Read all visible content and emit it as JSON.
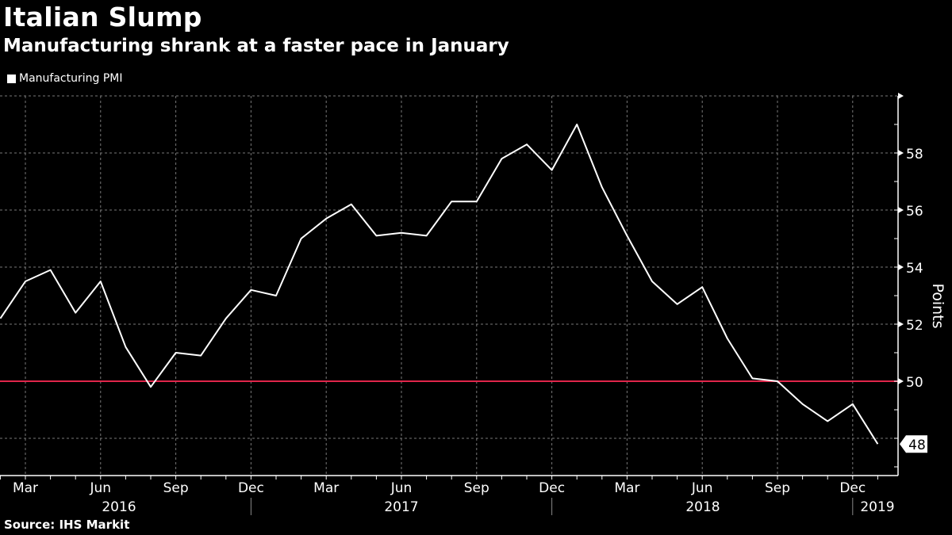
{
  "header": {
    "title": "Italian Slump",
    "subtitle": "Manufacturing shrank at a faster pace in January"
  },
  "legend": {
    "items": [
      {
        "label": "Manufacturing PMI",
        "color": "#ffffff"
      }
    ]
  },
  "footer": {
    "source": "Source: IHS Markit"
  },
  "colors": {
    "background": "#000000",
    "line": "#ffffff",
    "reference_line": "#e0264a",
    "grid": "#777777"
  },
  "chart_data": {
    "type": "line",
    "title": "Italian Slump",
    "subtitle": "Manufacturing shrank at a faster pace in January",
    "xlabel": "",
    "ylabel": "Points",
    "ylim": [
      47,
      60
    ],
    "y_ticks": [
      50,
      52,
      54,
      56,
      58
    ],
    "grid": true,
    "legend_position": "top-left",
    "x_tick_labels": [
      "Mar",
      "Jun",
      "Sep",
      "Dec",
      "Mar",
      "Jun",
      "Sep",
      "Dec",
      "Mar",
      "Jun",
      "Sep",
      "Dec"
    ],
    "x_year_labels": [
      "2016",
      "2017",
      "2018",
      "2019"
    ],
    "reference_line": {
      "value": 50,
      "color": "#e0264a"
    },
    "last_value_label": "48",
    "x": [
      "2016-02",
      "2016-03",
      "2016-04",
      "2016-05",
      "2016-06",
      "2016-07",
      "2016-08",
      "2016-09",
      "2016-10",
      "2016-11",
      "2016-12",
      "2017-01",
      "2017-02",
      "2017-03",
      "2017-04",
      "2017-05",
      "2017-06",
      "2017-07",
      "2017-08",
      "2017-09",
      "2017-10",
      "2017-11",
      "2017-12",
      "2018-01",
      "2018-02",
      "2018-03",
      "2018-04",
      "2018-05",
      "2018-06",
      "2018-07",
      "2018-08",
      "2018-09",
      "2018-10",
      "2018-11",
      "2018-12",
      "2019-01"
    ],
    "series": [
      {
        "name": "Manufacturing PMI",
        "values": [
          52.2,
          53.5,
          53.9,
          52.4,
          53.5,
          51.2,
          49.8,
          51.0,
          50.9,
          52.2,
          53.2,
          53.0,
          55.0,
          55.7,
          56.2,
          55.1,
          55.2,
          55.1,
          56.3,
          56.3,
          57.8,
          58.3,
          57.4,
          59.0,
          56.8,
          55.1,
          53.5,
          52.7,
          53.3,
          51.5,
          50.1,
          50.0,
          49.2,
          48.6,
          49.2,
          47.8
        ]
      }
    ]
  }
}
